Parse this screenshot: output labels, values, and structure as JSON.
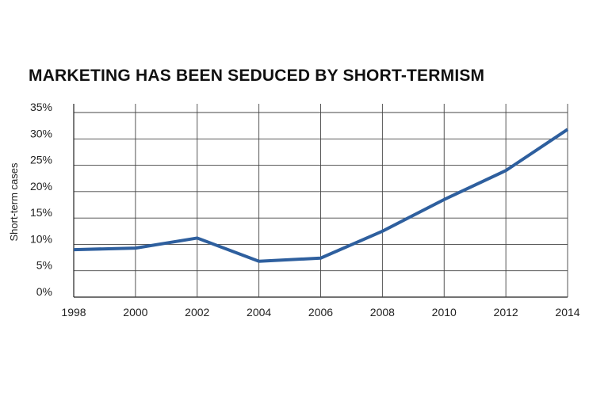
{
  "chart_data": {
    "type": "line",
    "title": "MARKETING HAS BEEN SEDUCED BY SHORT-TERMISM",
    "xlabel": "",
    "ylabel": "Short-term cases",
    "x": [
      "1998",
      "2000",
      "2002",
      "2004",
      "2006",
      "2008",
      "2010",
      "2012",
      "2014"
    ],
    "ylim": [
      0,
      35
    ],
    "y_ticks": [
      "0%",
      "5%",
      "10%",
      "15%",
      "20%",
      "25%",
      "30%",
      "35%"
    ],
    "grid": true,
    "series": [
      {
        "values": [
          9.0,
          9.3,
          11.2,
          6.8,
          7.4,
          12.5,
          18.5,
          24.0,
          31.8
        ],
        "color": "#2e5f9e"
      }
    ],
    "axis_color": "#222222",
    "grid_color": "#444444"
  }
}
